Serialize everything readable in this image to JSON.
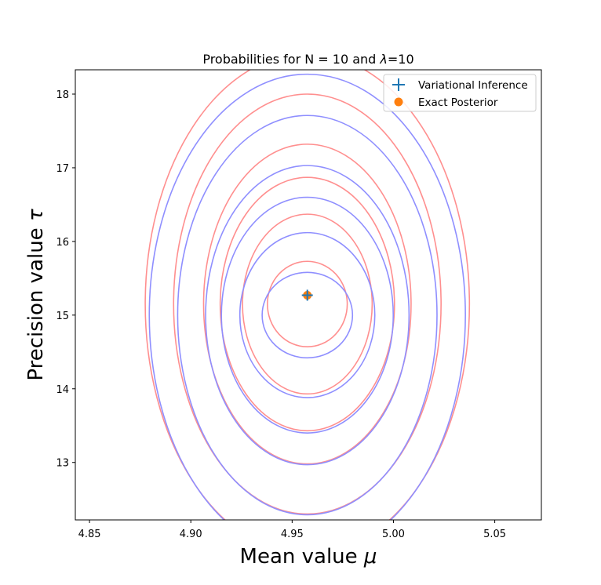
{
  "chart_data": {
    "type": "contour",
    "title_prefix": "Probabilities for N = 10 and ",
    "title_symbol": "λ",
    "title_suffix": "=10",
    "xlabel_text": "Mean value ",
    "xlabel_symbol": "μ",
    "ylabel_text": "Precision value ",
    "ylabel_symbol": "τ",
    "xlim": [
      4.843,
      5.073
    ],
    "ylim": [
      12.22,
      18.33
    ],
    "xticks": [
      {
        "value": 4.85,
        "label": "4.85"
      },
      {
        "value": 4.9,
        "label": "4.90"
      },
      {
        "value": 4.95,
        "label": "4.95"
      },
      {
        "value": 5.0,
        "label": "5.00"
      },
      {
        "value": 5.05,
        "label": "5.05"
      }
    ],
    "yticks": [
      {
        "value": 13,
        "label": "13"
      },
      {
        "value": 14,
        "label": "14"
      },
      {
        "value": 15,
        "label": "15"
      },
      {
        "value": 16,
        "label": "16"
      },
      {
        "value": 17,
        "label": "17"
      },
      {
        "value": 18,
        "label": "18"
      }
    ],
    "legend_position": "upper-right",
    "series": [
      {
        "name": "Variational Inference",
        "marker": "plus",
        "color": "#1f77b4",
        "contour_color": "#8f8fff",
        "center": [
          4.9575,
          15.0
        ],
        "marker_point": [
          4.9575,
          15.27
        ],
        "contours": [
          {
            "rx": 0.0223,
            "ry": 0.58
          },
          {
            "rx": 0.0333,
            "ry": 1.12
          },
          {
            "rx": 0.0424,
            "ry": 1.6
          },
          {
            "rx": 0.0502,
            "ry": 2.03
          },
          {
            "rx": 0.064,
            "ry": 2.71
          },
          {
            "rx": 0.078,
            "ry": 3.27
          }
        ]
      },
      {
        "name": "Exact Posterior",
        "marker": "circle",
        "color": "#ff7f0e",
        "contour_color": "#ff8f8f",
        "center": [
          4.9575,
          15.15
        ],
        "marker_point": [
          4.9575,
          15.27
        ],
        "contours": [
          {
            "rx": 0.0197,
            "ry": 0.58
          },
          {
            "rx": 0.032,
            "ry": 1.22
          },
          {
            "rx": 0.043,
            "ry": 1.72
          },
          {
            "rx": 0.0512,
            "ry": 2.17
          },
          {
            "rx": 0.066,
            "ry": 2.85
          },
          {
            "rx": 0.08,
            "ry": 3.4
          }
        ]
      }
    ]
  }
}
